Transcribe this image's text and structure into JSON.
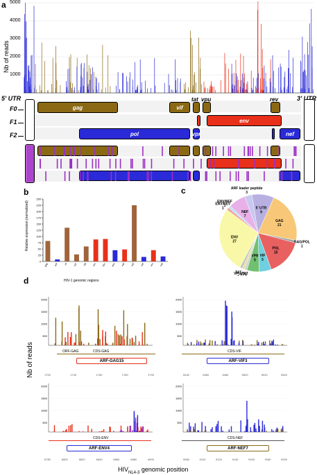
{
  "panel_labels": {
    "a": "a",
    "b": "b",
    "c": "c",
    "d": "d"
  },
  "panel_a": {
    "ylabel": "Nb of reads",
    "yticks": [
      "5000",
      "4000",
      "3000",
      "2000",
      "1000"
    ],
    "utr5": "5' UTR",
    "utr3": "3' UTR",
    "frames": [
      "F0",
      "F1",
      "F2"
    ],
    "genes": {
      "gag": "gag",
      "vif": "vif",
      "tat": "tat",
      "vpu": "vpu",
      "rev": "rev",
      "env": "env",
      "pol": "pol",
      "vpr": "vpr",
      "nef": "nef"
    }
  },
  "panel_b": {
    "ylabel": "Relative expression (normalized)",
    "xlabel": "HIV-1 genomic regions"
  },
  "panel_d": {
    "ylabel": "Nb of reads",
    "xlabel_prefix": "HIV",
    "xlabel_sub": "NL4-3",
    "xlabel_suffix": " genomic position",
    "sub1": {
      "cds": "CDS-GAG",
      "orf": "ORF-GAG",
      "peptide": "ARF-GAG15",
      "yticks": [
        "2000",
        "1500",
        "1000",
        "500"
      ],
      "xticks": [
        "1700",
        "1740",
        "1760",
        "1780",
        "1790"
      ]
    },
    "sub2": {
      "cds": "CDS-VIF",
      "peptide": "ARF-VIF3",
      "yticks": [
        "2000",
        "1500",
        "1000",
        "500"
      ],
      "xticks": [
        "5430",
        "5460",
        "5480",
        "5500",
        "5510",
        "5540"
      ]
    },
    "sub3": {
      "cds": "CDS-ENV",
      "peptide": "ARF-ENV4",
      "yticks": [
        "2000",
        "1500",
        "1000",
        "500"
      ],
      "xticks": [
        "6780",
        "6800",
        "6820",
        "6840",
        "6860",
        "6880",
        "6900"
      ]
    },
    "sub4": {
      "cds": "CDS-NEF",
      "peptide": "ARF-NEF7",
      "yticks": [
        "2000",
        "1500",
        "1000",
        "500"
      ],
      "xticks": [
        "9080",
        "9100",
        "9120",
        "9140",
        "9160",
        "9180",
        "9200"
      ]
    }
  },
  "colors": {
    "gold": "#8b6914",
    "blue": "#2a2ad8",
    "red": "#e8301a",
    "purple": "#9b2fc4",
    "brown": "#a0643c"
  },
  "chart_data": [
    {
      "type": "bar",
      "title": "",
      "xlabel": "HIV-1 genomic regions",
      "ylabel": "Relative expression (normalized)",
      "ylim": [
        0,
        250
      ],
      "categories": [
        "gag",
        "pol",
        "vif",
        "vpr",
        "tat",
        "rev",
        "vpu",
        "env",
        "nef",
        "nef",
        "nef",
        "rev",
        "nef"
      ],
      "series": [
        {
          "values": [
            82,
            8,
            135,
            28,
            60,
            88,
            90,
            45,
            48,
            225,
            18,
            45,
            20
          ]
        }
      ]
    },
    {
      "type": "pie",
      "title": "",
      "categories": [
        "ARF leader peptide",
        "5' UTR",
        "GAG",
        "GAG/POL",
        "POL",
        "VIF",
        "VPR",
        "VPU",
        "VPU/TAT",
        "TAT",
        "ENV",
        "ENV/REV",
        "ENV/NEF",
        "NEF"
      ],
      "values": [
        3,
        9,
        21,
        1,
        15,
        5,
        5,
        1,
        1,
        1,
        27,
        1,
        1,
        7
      ]
    }
  ]
}
